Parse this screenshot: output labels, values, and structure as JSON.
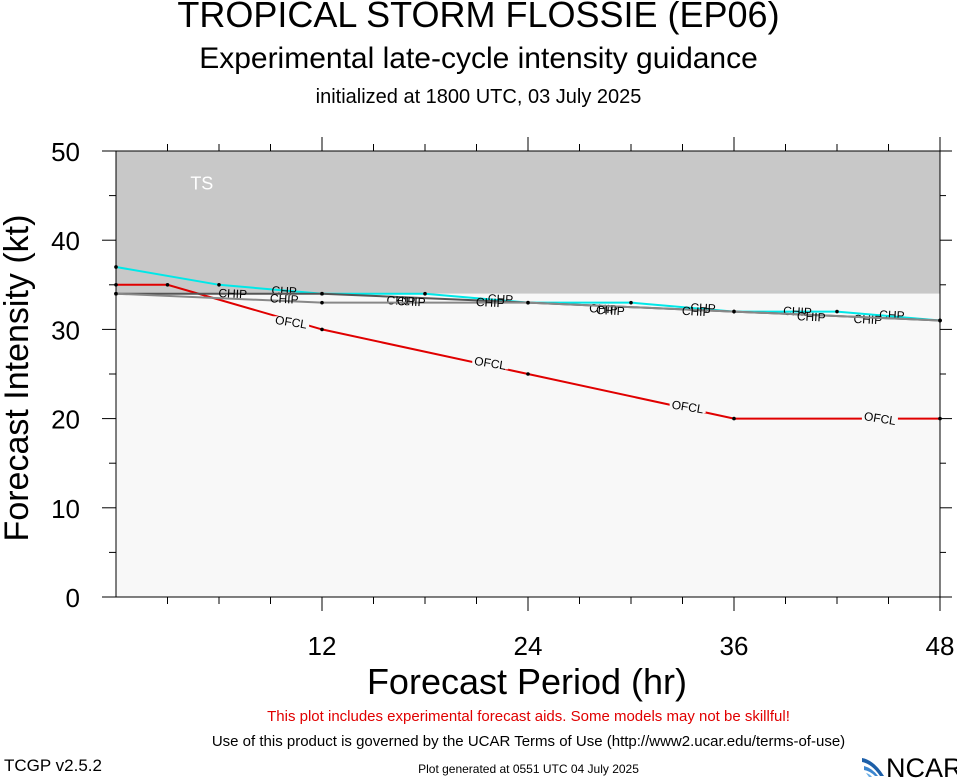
{
  "header": {
    "title": "TROPICAL STORM FLOSSIE (EP06)",
    "subtitle": "Experimental late-cycle intensity guidance",
    "initialized": "initialized at 1800 UTC, 03 July 2025"
  },
  "footer": {
    "warning": "This plot includes experimental forecast aids. Some models may not be skillful!",
    "terms": "Use of this product is governed by the UCAR Terms of Use (http://www2.ucar.edu/terms-of-use)",
    "generated": "Plot generated at 0551 UTC   04 July 2025",
    "version": "TCGP v2.5.2",
    "logo_text": "NCAR"
  },
  "chart_data": {
    "type": "line",
    "xlabel": "Forecast Period (hr)",
    "ylabel": "Forecast Intensity (kt)",
    "xlim": [
      0,
      48
    ],
    "ylim": [
      0,
      50
    ],
    "xticks": [
      12,
      24,
      36,
      48
    ],
    "yticks": [
      0,
      10,
      20,
      30,
      40,
      50
    ],
    "regions": [
      {
        "label": "TS",
        "from": 34,
        "to": 50,
        "color": "#c8c8c8"
      },
      {
        "label": "",
        "from": 0,
        "to": 34,
        "color": "#f8f8f8"
      }
    ],
    "series": [
      {
        "name": "OFCL",
        "color": "#e00000",
        "x": [
          0,
          3,
          12,
          24,
          36,
          48
        ],
        "y": [
          35,
          35,
          30,
          25,
          20,
          20
        ],
        "labels": [
          {
            "x": 10.2,
            "y": 30.8
          },
          {
            "x": 21.8,
            "y": 26.2
          },
          {
            "x": 33.3,
            "y": 21.3
          },
          {
            "x": 44.5,
            "y": 20
          }
        ]
      },
      {
        "name": "CHP",
        "color": "#00e8e8",
        "x": [
          0,
          6,
          12,
          18,
          24,
          30,
          36,
          42,
          48
        ],
        "y": [
          37,
          35,
          34,
          34,
          33,
          33,
          32,
          32,
          31
        ],
        "labels": [
          {
            "x": 9.8,
            "y": 34.3
          },
          {
            "x": 22.4,
            "y": 33.4
          },
          {
            "x": 34.2,
            "y": 32.4
          },
          {
            "x": 45.2,
            "y": 31.6
          }
        ]
      },
      {
        "name": "CHIP",
        "color": "#555555",
        "x": [
          0,
          12,
          24,
          36,
          48
        ],
        "y": [
          34,
          34,
          33,
          32,
          31
        ],
        "labels": [
          {
            "x": 6.8,
            "y": 34.0
          },
          {
            "x": 16.6,
            "y": 33.2
          },
          {
            "x": 28.4,
            "y": 32.3
          },
          {
            "x": 39.7,
            "y": 32.0
          },
          {
            "x": 43.8,
            "y": 31.1
          }
        ]
      },
      {
        "name": "CHIP",
        "color": "#888888",
        "x": [
          0,
          12,
          24,
          36,
          48
        ],
        "y": [
          34,
          33,
          33,
          32,
          31
        ],
        "labels": [
          {
            "x": 9.8,
            "y": 33.4
          },
          {
            "x": 17.2,
            "y": 33.1
          },
          {
            "x": 21.8,
            "y": 33.0
          },
          {
            "x": 28.8,
            "y": 32.1
          },
          {
            "x": 33.8,
            "y": 32.0
          },
          {
            "x": 40.5,
            "y": 31.4
          }
        ]
      }
    ]
  }
}
